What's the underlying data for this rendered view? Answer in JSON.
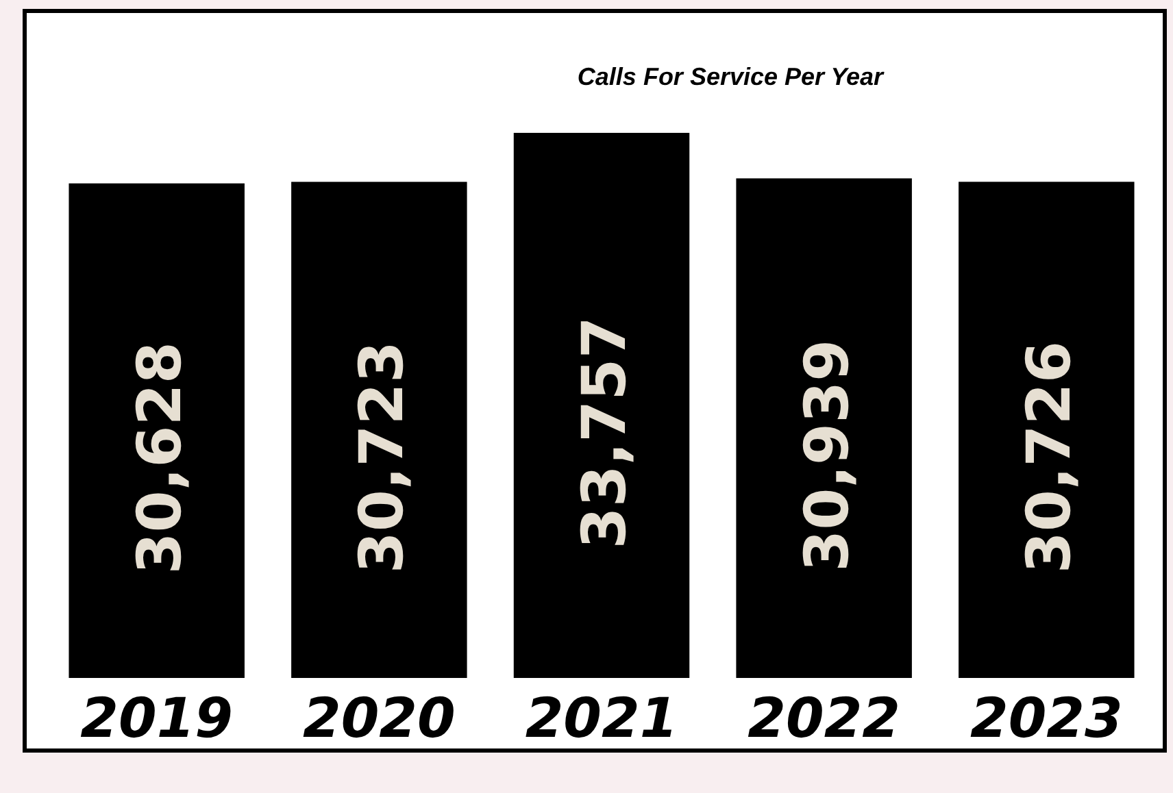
{
  "chart_data": {
    "type": "bar",
    "title": "Calls For Service Per Year",
    "categories": [
      "2019",
      "2020",
      "2021",
      "2022",
      "2023"
    ],
    "values": [
      30628,
      30723,
      33757,
      30939,
      30726
    ],
    "value_labels": [
      "30,628",
      "30,723",
      "33,757",
      "30,939",
      "30,726"
    ],
    "color": "#000000",
    "grid": false
  }
}
